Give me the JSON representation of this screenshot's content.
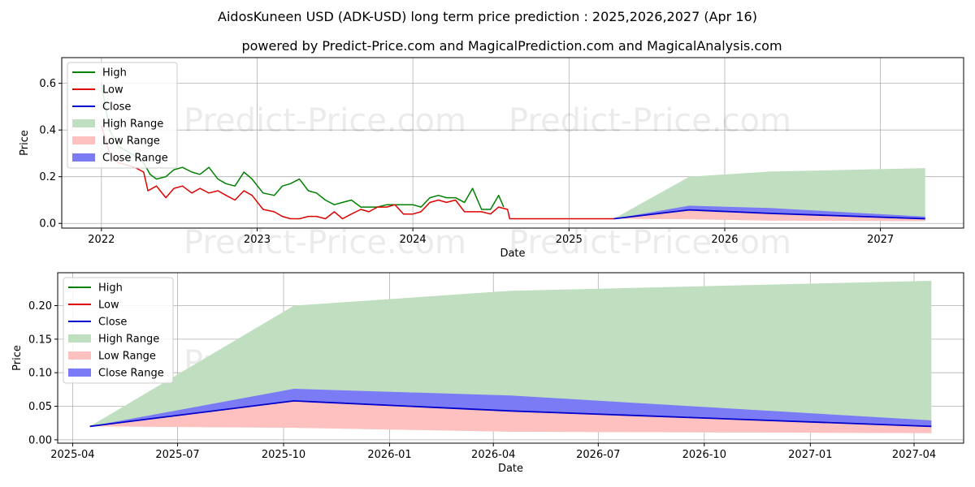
{
  "title": "AidosKuneen USD (ADK-USD) long term price prediction : 2025,2026,2027 (Apr 16)",
  "subtitle": "powered by Predict-Price.com and MagicalPrediction.com and MagicalAnalysis.com",
  "watermark": "Predict-Price.com",
  "colors": {
    "high": "#008000",
    "low": "#dd0000",
    "close": "#0000cc",
    "high_range": "#c0dfc0",
    "low_range": "#ffc0c0",
    "close_range": "#7b7bf5",
    "grid": "#b0b0b0"
  },
  "chart_data": [
    {
      "type": "line",
      "xlabel": "Date",
      "ylabel": "Price",
      "xlim": [
        "2021-09-30",
        "2027-07-15"
      ],
      "ylim": [
        -0.02,
        0.71
      ],
      "x_ticks": [
        "2022",
        "2023",
        "2024",
        "2025",
        "2026",
        "2027"
      ],
      "x_tick_dates": [
        "2022-01-01",
        "2023-01-01",
        "2024-01-01",
        "2025-01-01",
        "2026-01-01",
        "2027-01-01"
      ],
      "y_ticks": [
        "0.0",
        "0.2",
        "0.4",
        "0.6"
      ],
      "y_tick_values": [
        0.0,
        0.2,
        0.4,
        0.6
      ],
      "grid": true,
      "legend": {
        "position": "top-left",
        "entries": [
          "High",
          "Low",
          "Close",
          "High Range",
          "Low Range",
          "Close Range"
        ]
      },
      "series": [
        {
          "name": "High",
          "x": [
            "2022-01-01",
            "2022-01-20",
            "2022-02-10",
            "2022-03-01",
            "2022-03-20",
            "2022-04-10",
            "2022-04-25",
            "2022-05-10",
            "2022-06-01",
            "2022-06-20",
            "2022-07-10",
            "2022-08-01",
            "2022-08-20",
            "2022-09-10",
            "2022-10-01",
            "2022-10-20",
            "2022-11-10",
            "2022-12-01",
            "2022-12-20",
            "2023-01-15",
            "2023-02-10",
            "2023-03-01",
            "2023-03-20",
            "2023-04-10",
            "2023-05-01",
            "2023-05-20",
            "2023-06-10",
            "2023-07-01",
            "2023-07-20",
            "2023-08-10",
            "2023-09-01",
            "2023-09-20",
            "2023-10-10",
            "2023-11-01",
            "2023-11-20",
            "2023-12-10",
            "2024-01-01",
            "2024-01-20",
            "2024-02-10",
            "2024-03-01",
            "2024-03-20",
            "2024-04-10",
            "2024-05-01",
            "2024-05-20",
            "2024-06-10",
            "2024-07-01",
            "2024-07-20",
            "2024-08-01"
          ],
          "y": [
            0.6,
            0.4,
            0.33,
            0.31,
            0.29,
            0.26,
            0.21,
            0.19,
            0.2,
            0.23,
            0.24,
            0.22,
            0.21,
            0.24,
            0.19,
            0.17,
            0.16,
            0.22,
            0.19,
            0.13,
            0.12,
            0.16,
            0.17,
            0.19,
            0.14,
            0.13,
            0.1,
            0.08,
            0.09,
            0.1,
            0.07,
            0.07,
            0.07,
            0.08,
            0.08,
            0.08,
            0.08,
            0.07,
            0.11,
            0.12,
            0.11,
            0.11,
            0.09,
            0.15,
            0.06,
            0.06,
            0.12,
            0.07
          ]
        },
        {
          "name": "Low",
          "x": [
            "2022-01-01",
            "2022-01-20",
            "2022-02-10",
            "2022-03-01",
            "2022-03-20",
            "2022-04-10",
            "2022-04-20",
            "2022-05-10",
            "2022-06-01",
            "2022-06-20",
            "2022-07-10",
            "2022-08-01",
            "2022-08-20",
            "2022-09-10",
            "2022-10-01",
            "2022-10-20",
            "2022-11-10",
            "2022-12-01",
            "2022-12-20",
            "2023-01-15",
            "2023-02-10",
            "2023-03-01",
            "2023-03-20",
            "2023-04-10",
            "2023-05-01",
            "2023-05-20",
            "2023-06-10",
            "2023-07-01",
            "2023-07-20",
            "2023-08-10",
            "2023-09-01",
            "2023-09-20",
            "2023-10-10",
            "2023-11-01",
            "2023-11-20",
            "2023-12-10",
            "2024-01-01",
            "2024-01-20",
            "2024-02-10",
            "2024-03-01",
            "2024-03-20",
            "2024-04-10",
            "2024-05-01",
            "2024-05-20",
            "2024-06-10",
            "2024-07-01",
            "2024-07-20",
            "2024-08-10",
            "2024-08-15",
            "2024-09-15",
            "2024-11-01",
            "2025-01-01",
            "2025-04-16"
          ],
          "y": [
            0.42,
            0.3,
            0.26,
            0.25,
            0.24,
            0.22,
            0.14,
            0.16,
            0.11,
            0.15,
            0.16,
            0.13,
            0.15,
            0.13,
            0.14,
            0.12,
            0.1,
            0.14,
            0.12,
            0.06,
            0.05,
            0.03,
            0.02,
            0.02,
            0.03,
            0.03,
            0.02,
            0.05,
            0.02,
            0.04,
            0.06,
            0.05,
            0.07,
            0.07,
            0.08,
            0.04,
            0.04,
            0.05,
            0.09,
            0.1,
            0.09,
            0.1,
            0.05,
            0.05,
            0.05,
            0.04,
            0.07,
            0.06,
            0.02,
            0.02,
            0.02,
            0.02,
            0.02
          ]
        },
        {
          "name": "Close",
          "x": [
            "2025-04-16",
            "2025-10-10",
            "2026-04-16",
            "2027-04-16"
          ],
          "y": [
            0.02,
            0.058,
            0.043,
            0.02
          ]
        },
        {
          "name": "High Range",
          "x": [
            "2025-04-16",
            "2025-10-10",
            "2026-04-16",
            "2027-04-16"
          ],
          "upper": [
            0.02,
            0.2,
            0.222,
            0.237
          ],
          "lower": [
            0.02,
            0.018,
            0.012,
            0.01
          ]
        },
        {
          "name": "Low Range",
          "x": [
            "2025-04-16",
            "2025-10-10",
            "2026-04-16",
            "2027-04-16"
          ],
          "upper": [
            0.02,
            0.058,
            0.043,
            0.02
          ],
          "lower": [
            0.02,
            0.018,
            0.012,
            0.01
          ]
        },
        {
          "name": "Close Range",
          "x": [
            "2025-04-16",
            "2025-10-10",
            "2026-04-16",
            "2027-04-16"
          ],
          "upper": [
            0.02,
            0.076,
            0.066,
            0.029
          ],
          "lower": [
            0.02,
            0.058,
            0.043,
            0.02
          ]
        }
      ]
    },
    {
      "type": "line",
      "xlabel": "Date",
      "ylabel": "Price",
      "xlim": [
        "2025-03-19",
        "2027-05-14"
      ],
      "ylim": [
        -0.005,
        0.249
      ],
      "x_ticks": [
        "2025-04",
        "2025-07",
        "2025-10",
        "2026-01",
        "2026-04",
        "2026-07",
        "2026-10",
        "2027-01",
        "2027-04"
      ],
      "x_tick_dates": [
        "2025-04-01",
        "2025-07-01",
        "2025-10-01",
        "2026-01-01",
        "2026-04-01",
        "2026-07-01",
        "2026-10-01",
        "2027-01-01",
        "2027-04-01"
      ],
      "y_ticks": [
        "0.00",
        "0.05",
        "0.10",
        "0.15",
        "0.20"
      ],
      "y_tick_values": [
        0.0,
        0.05,
        0.1,
        0.15,
        0.2
      ],
      "grid": true,
      "legend": {
        "position": "top-left",
        "entries": [
          "High",
          "Low",
          "Close",
          "High Range",
          "Low Range",
          "Close Range"
        ]
      },
      "series": [
        {
          "name": "Close",
          "x": [
            "2025-04-16",
            "2025-10-10",
            "2026-04-16",
            "2027-04-16"
          ],
          "y": [
            0.02,
            0.058,
            0.043,
            0.02
          ]
        },
        {
          "name": "High Range",
          "x": [
            "2025-04-16",
            "2025-10-10",
            "2026-04-16",
            "2027-04-16"
          ],
          "upper": [
            0.02,
            0.2,
            0.222,
            0.237
          ],
          "lower": [
            0.02,
            0.018,
            0.012,
            0.01
          ]
        },
        {
          "name": "Low Range",
          "x": [
            "2025-04-16",
            "2025-10-10",
            "2026-04-16",
            "2027-04-16"
          ],
          "upper": [
            0.02,
            0.058,
            0.043,
            0.02
          ],
          "lower": [
            0.02,
            0.018,
            0.012,
            0.01
          ]
        },
        {
          "name": "Close Range",
          "x": [
            "2025-04-16",
            "2025-10-10",
            "2026-04-16",
            "2027-04-16"
          ],
          "upper": [
            0.02,
            0.076,
            0.066,
            0.029
          ],
          "lower": [
            0.02,
            0.058,
            0.043,
            0.02
          ]
        }
      ]
    }
  ]
}
